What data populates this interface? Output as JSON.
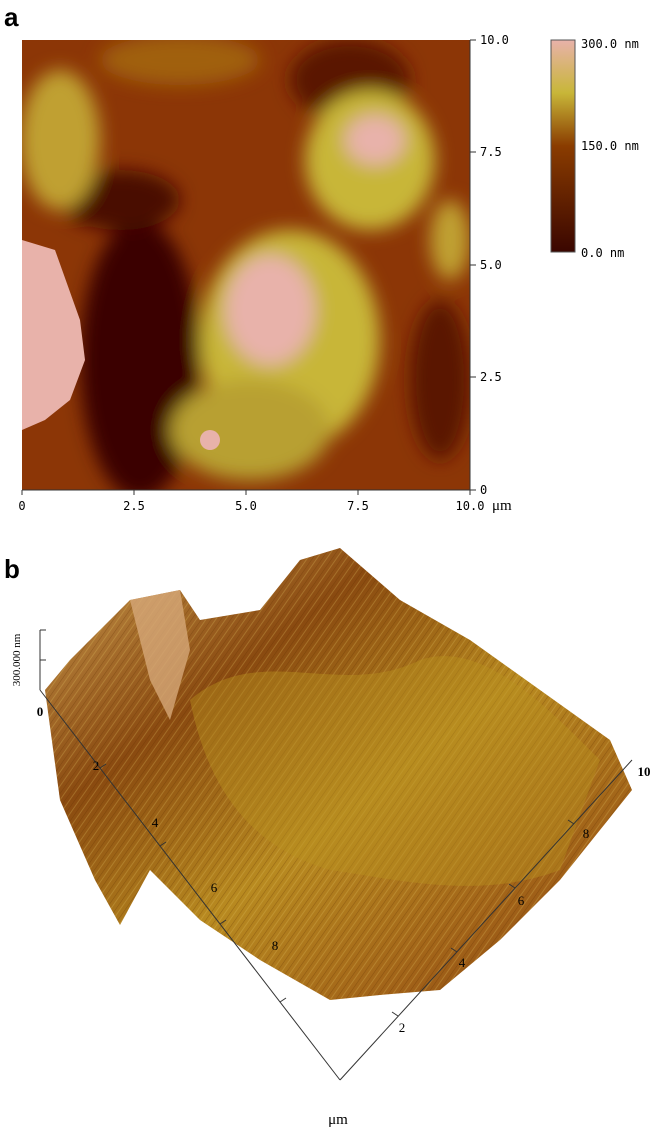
{
  "panel_a": {
    "label": "a",
    "x_ticks": [
      "0",
      "2.5",
      "5.0",
      "7.5",
      "10.0"
    ],
    "x_unit": "μm",
    "y_ticks": [
      "10.0",
      "7.5",
      "5.0",
      "2.5",
      "0"
    ],
    "colorbar_labels": [
      "300.0 nm",
      "150.0 nm",
      "0.0 nm"
    ]
  },
  "panel_b": {
    "label": "b",
    "z_label": "300.000 nm",
    "corner_left": "0",
    "corner_right": "10",
    "left_axis_ticks": [
      "2",
      "4",
      "6",
      "8"
    ],
    "right_axis_ticks": [
      "2",
      "4",
      "6",
      "8"
    ],
    "unit": "μm"
  }
}
